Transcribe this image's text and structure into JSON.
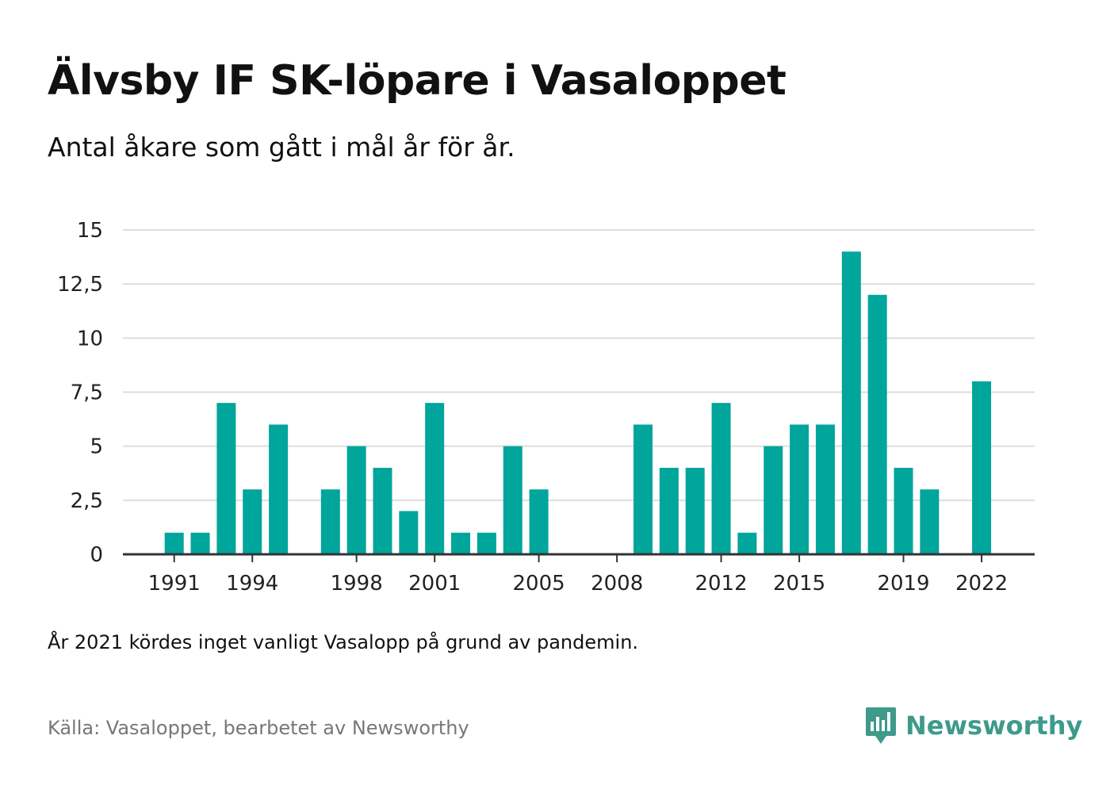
{
  "title": "Älvsby IF SK-löpare i Vasaloppet",
  "subtitle": "Antal åkare som gått i mål år för år.",
  "note": "År 2021 kördes inget vanligt Vasalopp på grund av pandemin.",
  "source": "Källa: Vasaloppet, bearbetet av Newsworthy",
  "logo_text": "Newsworthy",
  "colors": {
    "bar": "#00a59b",
    "grid": "#dddddd",
    "axis": "#333333",
    "logo": "#3e9a8b"
  },
  "chart_data": {
    "type": "bar",
    "x": [
      1989,
      1990,
      1991,
      1992,
      1993,
      1994,
      1995,
      1996,
      1997,
      1998,
      1999,
      2000,
      2001,
      2002,
      2003,
      2004,
      2005,
      2006,
      2007,
      2008,
      2009,
      2010,
      2011,
      2012,
      2013,
      2014,
      2015,
      2016,
      2017,
      2018,
      2019,
      2020,
      2021,
      2022
    ],
    "values": [
      0,
      0,
      1,
      1,
      7,
      3,
      6,
      0,
      3,
      5,
      4,
      2,
      7,
      1,
      1,
      5,
      3,
      0,
      0,
      0,
      6,
      4,
      4,
      7,
      1,
      5,
      6,
      6,
      14,
      12,
      4,
      3,
      0,
      8
    ],
    "x_tick_labels": [
      "1991",
      "1994",
      "1998",
      "2001",
      "2005",
      "2008",
      "2012",
      "2015",
      "2019",
      "2022"
    ],
    "y_ticks": [
      0,
      2.5,
      5,
      7.5,
      10,
      12.5,
      15
    ],
    "y_tick_labels": [
      "0",
      "2,5",
      "5",
      "7,5",
      "10",
      "12,5",
      "15"
    ],
    "ylim": [
      0,
      15
    ],
    "grid": true
  }
}
